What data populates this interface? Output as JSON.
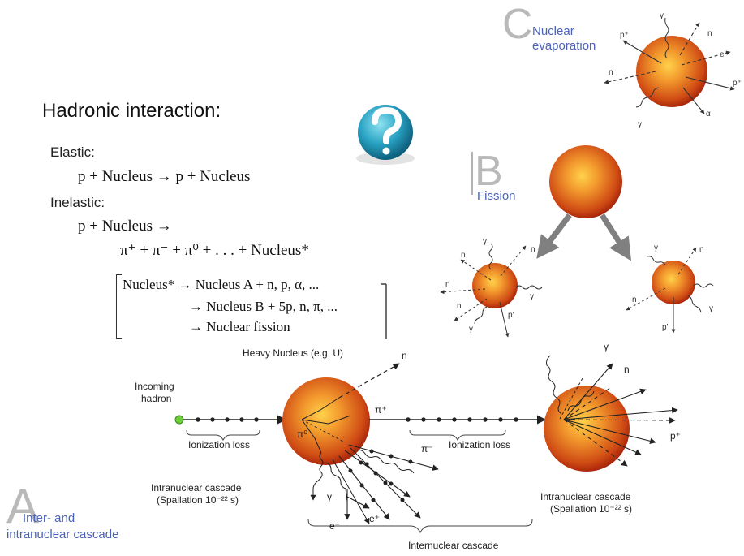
{
  "title": "Hadronic interaction:",
  "elastic": {
    "label": "Elastic:",
    "equation": "p + Nucleus → p + Nucleus"
  },
  "inelastic": {
    "label": "Inelastic:",
    "line1": "p + Nucleus →",
    "line2": "π⁺ + π⁻ + π⁰ + . . . + Nucleus*",
    "bracket_lines": [
      "Nucleus* → Nucleus A + n, p, α, ...",
      "→ Nucleus B + 5p, n, π, ...",
      "→ Nuclear fission"
    ]
  },
  "panels": {
    "A": {
      "letter": "A",
      "caption_line1": "Inter- and",
      "caption_line2": "intranuclear cascade"
    },
    "B": {
      "letter": "B",
      "caption": "Fission"
    },
    "C": {
      "letter": "C",
      "caption_line1": "Nuclear",
      "caption_line2": "evaporation"
    }
  },
  "cascade_labels": {
    "heavy_nucleus": "Heavy Nucleus (e.g. U)",
    "incoming_line1": "Incoming",
    "incoming_line2": "hadron",
    "ionization_loss_1": "Ionization loss",
    "ionization_loss_2": "Ionization loss",
    "intranuclear_1_line1": "Intranuclear cascade",
    "intranuclear_1_line2": "(Spallation 10⁻²² s)",
    "intranuclear_2_line1": "Intranuclear cascade",
    "intranuclear_2_line2": "(Spallation 10⁻²² s)",
    "internuclear": "Internuclear cascade",
    "n_top": "n",
    "pi_plus": "π⁺",
    "pi_zero": "π⁰",
    "pi_minus": "π⁻",
    "gamma": "γ",
    "e_minus": "e⁻",
    "e_plus": "e⁺",
    "gamma_right": "γ",
    "n_right": "n",
    "p_plus_right": "p⁺"
  },
  "evaporation_labels": {
    "gamma_top": "γ",
    "p_plus_left": "p⁺",
    "n_top_right": "n",
    "e_minus": "e⁻",
    "n_left": "n",
    "p_plus_right": "p⁺",
    "gamma_bottom": "γ",
    "alpha": "α"
  },
  "fission_labels": {
    "left": {
      "gamma_top": "γ",
      "n_left_top": "n",
      "n_right_top": "n",
      "n_left": "n",
      "gamma_right": "γ",
      "n_left_bottom": "n",
      "p_prime": "p'",
      "gamma_bottom": "γ"
    },
    "right": {
      "gamma_top": "γ",
      "n_right_top": "n",
      "n_left": "n",
      "gamma_right": "γ",
      "p_prime": "p'"
    }
  },
  "icon": {
    "name": "help-question-icon",
    "glyph": "?"
  },
  "colors": {
    "nucleus_center": "#f7a23a",
    "nucleus_edge": "#b5240b",
    "caption_blue": "#4a62b8",
    "letter_gray": "#b9b9b9",
    "arrow_gray": "#777777",
    "hadron_green": "#6ccf3a",
    "icon_teal": "#1d8fae"
  }
}
